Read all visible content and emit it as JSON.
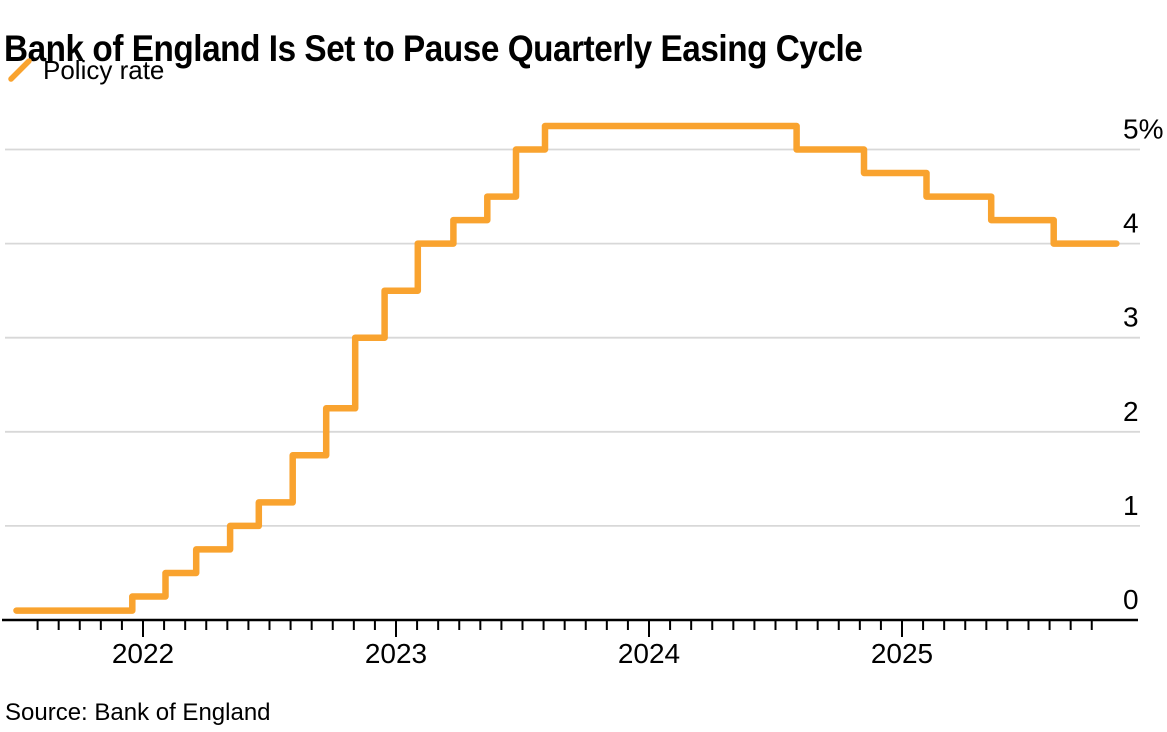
{
  "colors": {
    "line": "#F9A32F",
    "grid": "#D8D8D8",
    "axis": "#000000",
    "text": "#000000",
    "background": "#FFFFFF"
  },
  "footer": {
    "source": "Source: Bank of England"
  },
  "chart_data": {
    "type": "line",
    "subtype": "step-after",
    "title": "Bank of England Is Set to Pause Quarterly Easing Cycle",
    "legend_position": "top-left",
    "grid": "horizontal",
    "source": "Source: Bank of England",
    "series": [
      {
        "name": "Policy rate",
        "color": "#F9A32F",
        "unit": "%",
        "points": [
          {
            "date": "2021-07-01",
            "rate": 0.1
          },
          {
            "date": "2021-12-16",
            "rate": 0.25
          },
          {
            "date": "2022-02-03",
            "rate": 0.5
          },
          {
            "date": "2022-03-17",
            "rate": 0.75
          },
          {
            "date": "2022-05-05",
            "rate": 1.0
          },
          {
            "date": "2022-06-16",
            "rate": 1.25
          },
          {
            "date": "2022-08-04",
            "rate": 1.75
          },
          {
            "date": "2022-09-22",
            "rate": 2.25
          },
          {
            "date": "2022-11-03",
            "rate": 3.0
          },
          {
            "date": "2022-12-15",
            "rate": 3.5
          },
          {
            "date": "2023-02-02",
            "rate": 4.0
          },
          {
            "date": "2023-03-23",
            "rate": 4.25
          },
          {
            "date": "2023-05-11",
            "rate": 4.5
          },
          {
            "date": "2023-06-22",
            "rate": 5.0
          },
          {
            "date": "2023-08-03",
            "rate": 5.25
          },
          {
            "date": "2024-08-01",
            "rate": 5.0
          },
          {
            "date": "2024-11-07",
            "rate": 4.75
          },
          {
            "date": "2025-02-06",
            "rate": 4.5
          },
          {
            "date": "2025-05-08",
            "rate": 4.25
          },
          {
            "date": "2025-08-07",
            "rate": 4.0
          },
          {
            "date": "2025-11-06",
            "rate": 4.0
          }
        ]
      }
    ],
    "x_axis": {
      "tick_labels": [
        "2022",
        "2023",
        "2024",
        "2025"
      ],
      "minor_tick_interval": "month",
      "minor_tick_start": "2021-08",
      "minor_tick_end": "2025-10",
      "range": [
        "2021-06-25",
        "2025-12-01"
      ]
    },
    "y_axis": {
      "side": "right",
      "ticks": [
        0,
        1,
        2,
        3,
        4,
        5
      ],
      "top_tick_label": "5%",
      "unit": "%",
      "range": [
        0,
        5.25
      ],
      "grid": true
    }
  }
}
